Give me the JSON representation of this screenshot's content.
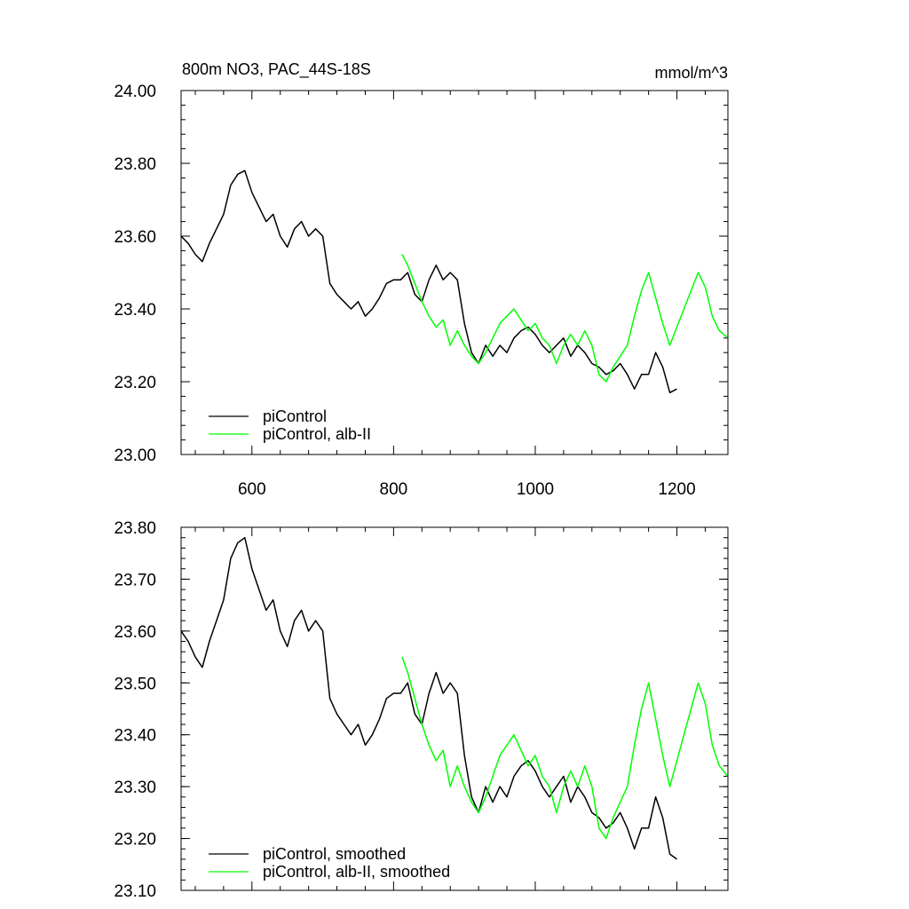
{
  "chart_data": [
    {
      "type": "line",
      "title": "800m NO3, PAC_44S-18S",
      "units": "mmol/m^3",
      "xlim": [
        500,
        1272
      ],
      "ylim": [
        23.0,
        24.0
      ],
      "xticks": [
        600,
        800,
        1000,
        1200
      ],
      "yticks": [
        23.0,
        23.2,
        23.4,
        23.6,
        23.8,
        24.0
      ],
      "ytick_labels": [
        "23.00",
        "23.20",
        "23.40",
        "23.60",
        "23.80",
        "24.00"
      ],
      "show_x_tick_labels": true,
      "legend_position": "bottom-left",
      "series": [
        {
          "name": "piControl",
          "color": "#000000",
          "x": [
            500,
            510,
            520,
            530,
            540,
            550,
            560,
            570,
            580,
            590,
            600,
            610,
            620,
            630,
            640,
            650,
            660,
            670,
            680,
            690,
            700,
            710,
            720,
            730,
            740,
            750,
            760,
            770,
            780,
            790,
            800,
            810,
            820,
            830,
            840,
            850,
            860,
            870,
            880,
            890,
            900,
            910,
            920,
            930,
            940,
            950,
            960,
            970,
            980,
            990,
            1000,
            1010,
            1020,
            1030,
            1040,
            1050,
            1060,
            1070,
            1080,
            1090,
            1100,
            1110,
            1120,
            1130,
            1140,
            1150,
            1160,
            1170,
            1180,
            1190,
            1200
          ],
          "values": [
            23.6,
            23.58,
            23.55,
            23.53,
            23.58,
            23.62,
            23.66,
            23.74,
            23.77,
            23.78,
            23.72,
            23.68,
            23.64,
            23.66,
            23.6,
            23.57,
            23.62,
            23.64,
            23.6,
            23.62,
            23.6,
            23.47,
            23.44,
            23.42,
            23.4,
            23.42,
            23.38,
            23.4,
            23.43,
            23.47,
            23.48,
            23.48,
            23.5,
            23.44,
            23.42,
            23.48,
            23.52,
            23.48,
            23.5,
            23.48,
            23.36,
            23.28,
            23.25,
            23.3,
            23.27,
            23.3,
            23.28,
            23.32,
            23.34,
            23.35,
            23.33,
            23.3,
            23.28,
            23.3,
            23.32,
            23.27,
            23.3,
            23.28,
            23.25,
            23.24,
            23.22,
            23.23,
            23.25,
            23.22,
            23.18,
            23.22,
            23.22,
            23.28,
            23.24,
            23.17,
            23.18
          ]
        },
        {
          "name": "piControl, alb-II",
          "color": "#00ff00",
          "x": [
            812,
            820,
            830,
            840,
            850,
            860,
            870,
            880,
            890,
            900,
            910,
            920,
            930,
            940,
            950,
            960,
            970,
            980,
            990,
            1000,
            1010,
            1020,
            1030,
            1040,
            1050,
            1060,
            1070,
            1080,
            1090,
            1100,
            1110,
            1120,
            1130,
            1140,
            1150,
            1160,
            1170,
            1180,
            1190,
            1200,
            1210,
            1220,
            1230,
            1240,
            1250,
            1260,
            1272
          ],
          "values": [
            23.55,
            23.52,
            23.47,
            23.42,
            23.38,
            23.35,
            23.37,
            23.3,
            23.34,
            23.3,
            23.27,
            23.25,
            23.28,
            23.32,
            23.36,
            23.38,
            23.4,
            23.37,
            23.34,
            23.36,
            23.32,
            23.3,
            23.25,
            23.3,
            23.33,
            23.3,
            23.34,
            23.3,
            23.22,
            23.2,
            23.24,
            23.27,
            23.3,
            23.38,
            23.45,
            23.5,
            23.43,
            23.36,
            23.3,
            23.35,
            23.4,
            23.45,
            23.5,
            23.46,
            23.38,
            23.34,
            23.32
          ]
        }
      ]
    },
    {
      "type": "line",
      "title": "",
      "units": "",
      "xlim": [
        500,
        1272
      ],
      "ylim": [
        23.1,
        23.8
      ],
      "xticks": [
        600,
        800,
        1000,
        1200
      ],
      "yticks": [
        23.1,
        23.2,
        23.3,
        23.4,
        23.5,
        23.6,
        23.7,
        23.8
      ],
      "ytick_labels": [
        "23.10",
        "23.20",
        "23.30",
        "23.40",
        "23.50",
        "23.60",
        "23.70",
        "23.80"
      ],
      "show_x_tick_labels": false,
      "legend_position": "bottom-left",
      "series": [
        {
          "name": "piControl, smoothed",
          "color": "#000000",
          "x": [
            500,
            510,
            520,
            530,
            540,
            550,
            560,
            570,
            580,
            590,
            600,
            610,
            620,
            630,
            640,
            650,
            660,
            670,
            680,
            690,
            700,
            710,
            720,
            730,
            740,
            750,
            760,
            770,
            780,
            790,
            800,
            810,
            820,
            830,
            840,
            850,
            860,
            870,
            880,
            890,
            900,
            910,
            920,
            930,
            940,
            950,
            960,
            970,
            980,
            990,
            1000,
            1010,
            1020,
            1030,
            1040,
            1050,
            1060,
            1070,
            1080,
            1090,
            1100,
            1110,
            1120,
            1130,
            1140,
            1150,
            1160,
            1170,
            1180,
            1190,
            1200
          ],
          "values": [
            23.6,
            23.58,
            23.55,
            23.53,
            23.58,
            23.62,
            23.66,
            23.74,
            23.77,
            23.78,
            23.72,
            23.68,
            23.64,
            23.66,
            23.6,
            23.57,
            23.62,
            23.64,
            23.6,
            23.62,
            23.6,
            23.47,
            23.44,
            23.42,
            23.4,
            23.42,
            23.38,
            23.4,
            23.43,
            23.47,
            23.48,
            23.48,
            23.5,
            23.44,
            23.42,
            23.48,
            23.52,
            23.48,
            23.5,
            23.48,
            23.36,
            23.28,
            23.25,
            23.3,
            23.27,
            23.3,
            23.28,
            23.32,
            23.34,
            23.35,
            23.33,
            23.3,
            23.28,
            23.3,
            23.32,
            23.27,
            23.3,
            23.28,
            23.25,
            23.24,
            23.22,
            23.23,
            23.25,
            23.22,
            23.18,
            23.22,
            23.22,
            23.28,
            23.24,
            23.17,
            23.16
          ]
        },
        {
          "name": "piControl, alb-II, smoothed",
          "color": "#00ff00",
          "x": [
            812,
            820,
            830,
            840,
            850,
            860,
            870,
            880,
            890,
            900,
            910,
            920,
            930,
            940,
            950,
            960,
            970,
            980,
            990,
            1000,
            1010,
            1020,
            1030,
            1040,
            1050,
            1060,
            1070,
            1080,
            1090,
            1100,
            1110,
            1120,
            1130,
            1140,
            1150,
            1160,
            1170,
            1180,
            1190,
            1200,
            1210,
            1220,
            1230,
            1240,
            1250,
            1260,
            1272
          ],
          "values": [
            23.55,
            23.52,
            23.47,
            23.42,
            23.38,
            23.35,
            23.37,
            23.3,
            23.34,
            23.3,
            23.27,
            23.25,
            23.28,
            23.32,
            23.36,
            23.38,
            23.4,
            23.37,
            23.34,
            23.36,
            23.32,
            23.3,
            23.25,
            23.3,
            23.33,
            23.3,
            23.34,
            23.3,
            23.22,
            23.2,
            23.24,
            23.27,
            23.3,
            23.38,
            23.45,
            23.5,
            23.43,
            23.36,
            23.3,
            23.35,
            23.4,
            23.45,
            23.5,
            23.46,
            23.38,
            23.34,
            23.32
          ]
        }
      ]
    }
  ]
}
